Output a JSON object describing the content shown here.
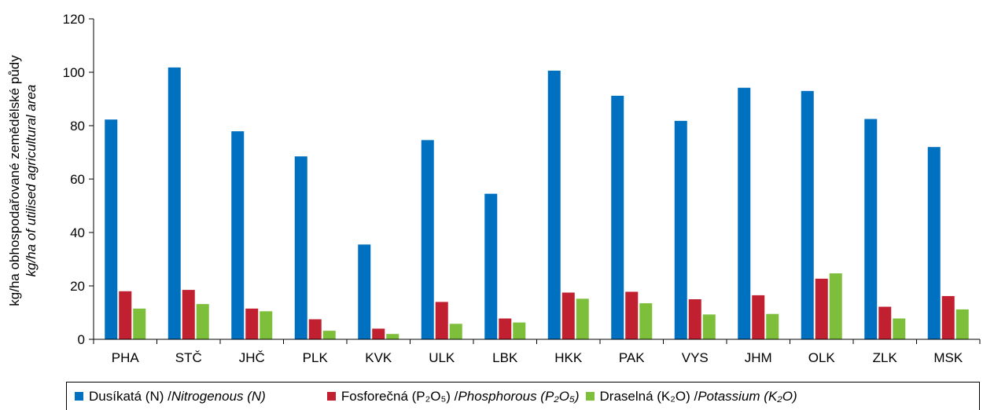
{
  "chart_data": {
    "type": "bar",
    "title": "",
    "ylabel": "kg/ha obhospodařované zemědělské půdy",
    "ylabel_en": "kg/ha of utilised agricultural area",
    "ylim": [
      0,
      120
    ],
    "yticks": [
      "0",
      "20",
      "40",
      "60",
      "80",
      "100",
      "120"
    ],
    "categories": [
      "PHA",
      "STČ",
      "JHČ",
      "PLK",
      "KVK",
      "ULK",
      "LBK",
      "HKK",
      "PAK",
      "VYS",
      "JHM",
      "OLK",
      "ZLK",
      "MSK"
    ],
    "series": [
      {
        "name": "Dusíkatá (N) / Nitrogenous (N)",
        "color": "#0070c0",
        "values": [
          82.3,
          101.8,
          77.9,
          68.5,
          35.5,
          74.6,
          54.5,
          100.6,
          91.2,
          81.8,
          94.2,
          93.0,
          82.5,
          72.0
        ]
      },
      {
        "name": "Fosforečná (P2O5) / Phosphorous (P2O5)",
        "color": "#c0202f",
        "values": [
          18.0,
          18.5,
          11.5,
          7.5,
          4.0,
          14.0,
          7.8,
          17.5,
          17.8,
          15.0,
          16.5,
          22.7,
          12.2,
          16.2
        ]
      },
      {
        "name": "Draselná (K2O) / Potassium (K2O)",
        "color": "#7dbf3a",
        "values": [
          11.5,
          13.2,
          10.5,
          3.2,
          2.0,
          5.8,
          6.3,
          15.2,
          13.5,
          9.3,
          9.5,
          24.7,
          7.8,
          11.2
        ]
      }
    ],
    "grid": false,
    "legend_position": "bottom"
  },
  "legend": {
    "n_cz": "Dusíkatá (N) / ",
    "n_en": "Nitrogenous (N)",
    "p_cz": "Fosforečná (P₂O₅) / ",
    "p_en": "Phosphorous (P₂O₅)",
    "k_cz": "Draselná (K₂O) / ",
    "k_en": "Potassium (K₂O)"
  }
}
